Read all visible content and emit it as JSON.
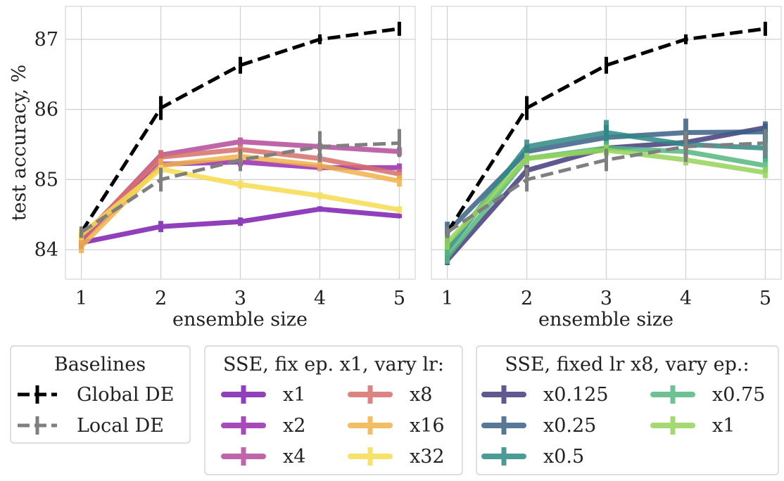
{
  "chart_data": [
    {
      "type": "line",
      "panel": "left",
      "xlabel": "ensemble size",
      "ylabel": "test accuracy, %",
      "x": [
        1,
        2,
        3,
        4,
        5
      ],
      "xticks": [
        "1",
        "2",
        "3",
        "4",
        "5"
      ],
      "yticks": [
        "84",
        "85",
        "86",
        "87"
      ],
      "xlim": [
        0.8,
        5.2
      ],
      "ylim": [
        83.58,
        87.47
      ],
      "grid": true,
      "series": [
        {
          "name": "Global DE",
          "values": [
            84.25,
            86.02,
            86.63,
            87.0,
            87.15
          ],
          "err": [
            0.08,
            0.17,
            0.12,
            0.07,
            0.1
          ],
          "color": "#000000",
          "dashed": true,
          "alpha": 1.0
        },
        {
          "name": "Local DE",
          "values": [
            84.25,
            85.0,
            85.28,
            85.47,
            85.52
          ],
          "err": [
            0.08,
            0.17,
            0.16,
            0.22,
            0.2
          ],
          "color": "#7f7f7f",
          "dashed": true,
          "alpha": 1.0
        },
        {
          "name": "x1",
          "values": [
            84.1,
            84.33,
            84.4,
            84.58,
            84.48
          ],
          "err": [
            0.09,
            0.08,
            0.06,
            0.04,
            0.03
          ],
          "color": "#7e1fb0",
          "dashed": false,
          "alpha": 0.85
        },
        {
          "name": "x2",
          "values": [
            84.13,
            85.22,
            85.25,
            85.17,
            85.17
          ],
          "err": [
            0.07,
            0.06,
            0.06,
            0.05,
            0.06
          ],
          "color": "#9a2cae",
          "dashed": false,
          "alpha": 0.85
        },
        {
          "name": "x4",
          "values": [
            84.15,
            85.35,
            85.54,
            85.47,
            85.4
          ],
          "err": [
            0.08,
            0.07,
            0.06,
            0.05,
            0.06
          ],
          "color": "#b44c9c",
          "dashed": false,
          "alpha": 0.85
        },
        {
          "name": "x8",
          "values": [
            84.17,
            85.32,
            85.43,
            85.3,
            85.08
          ],
          "err": [
            0.08,
            0.1,
            0.07,
            0.07,
            0.07
          ],
          "color": "#d76f6a",
          "dashed": false,
          "alpha": 0.85
        },
        {
          "name": "x16",
          "values": [
            84.05,
            85.2,
            85.33,
            85.2,
            84.98
          ],
          "err": [
            0.1,
            0.1,
            0.08,
            0.08,
            0.08
          ],
          "color": "#f0b24a",
          "dashed": false,
          "alpha": 0.85
        },
        {
          "name": "x32",
          "values": [
            84.22,
            85.15,
            84.93,
            84.77,
            84.57
          ],
          "err": [
            0.08,
            0.06,
            0.06,
            0.05,
            0.05
          ],
          "color": "#f6dc52",
          "dashed": false,
          "alpha": 0.85
        }
      ]
    },
    {
      "type": "line",
      "panel": "right",
      "xlabel": "ensemble size",
      "ylabel": "",
      "x": [
        1,
        2,
        3,
        4,
        5
      ],
      "xticks": [
        "1",
        "2",
        "3",
        "4",
        "5"
      ],
      "yticks": [],
      "xlim": [
        0.8,
        5.2
      ],
      "ylim": [
        83.58,
        87.47
      ],
      "grid": true,
      "series": [
        {
          "name": "Global DE",
          "values": [
            84.25,
            86.02,
            86.63,
            87.0,
            87.15
          ],
          "err": [
            0.08,
            0.17,
            0.12,
            0.07,
            0.1
          ],
          "color": "#000000",
          "dashed": true,
          "alpha": 1.0
        },
        {
          "name": "Local DE",
          "values": [
            84.25,
            85.0,
            85.28,
            85.47,
            85.52
          ],
          "err": [
            0.08,
            0.17,
            0.16,
            0.22,
            0.2
          ],
          "color": "#7f7f7f",
          "dashed": true,
          "alpha": 1.0
        },
        {
          "name": "x0.125",
          "values": [
            83.85,
            85.13,
            85.45,
            85.53,
            85.74
          ],
          "err": [
            0.07,
            0.08,
            0.08,
            0.07,
            0.06
          ],
          "color": "#473b7d",
          "dashed": false,
          "alpha": 0.85
        },
        {
          "name": "x0.25",
          "values": [
            84.25,
            85.4,
            85.6,
            85.67,
            85.68
          ],
          "err": [
            0.15,
            0.1,
            0.18,
            0.2,
            0.15
          ],
          "color": "#3b6186",
          "dashed": false,
          "alpha": 0.85
        },
        {
          "name": "x0.5",
          "values": [
            84.0,
            85.47,
            85.67,
            85.5,
            85.45
          ],
          "err": [
            0.12,
            0.1,
            0.18,
            0.15,
            0.2
          ],
          "color": "#2e8a86",
          "dashed": false,
          "alpha": 0.85
        },
        {
          "name": "x0.75",
          "values": [
            83.9,
            85.3,
            85.45,
            85.4,
            85.2
          ],
          "err": [
            0.1,
            0.08,
            0.1,
            0.1,
            0.1
          ],
          "color": "#55b880",
          "dashed": false,
          "alpha": 0.85
        },
        {
          "name": "x1",
          "values": [
            84.1,
            85.3,
            85.42,
            85.28,
            85.1
          ],
          "err": [
            0.1,
            0.08,
            0.08,
            0.08,
            0.08
          ],
          "color": "#96d45a",
          "dashed": false,
          "alpha": 0.85
        }
      ]
    }
  ],
  "legends": {
    "baselines": {
      "title": "Baselines",
      "items": [
        {
          "label": "Global DE",
          "color": "#000000",
          "dashed": true
        },
        {
          "label": "Local DE",
          "color": "#7f7f7f",
          "dashed": true
        }
      ]
    },
    "lr": {
      "title": "SSE, fix ep. x1, vary lr:",
      "items": [
        {
          "label": "x1",
          "color": "#7e1fb0"
        },
        {
          "label": "x2",
          "color": "#9a2cae"
        },
        {
          "label": "x4",
          "color": "#b44c9c"
        },
        {
          "label": "x8",
          "color": "#d76f6a"
        },
        {
          "label": "x16",
          "color": "#f0b24a"
        },
        {
          "label": "x32",
          "color": "#f6dc52"
        }
      ]
    },
    "ep": {
      "title": "SSE, fixed lr x8, vary ep.:",
      "items": [
        {
          "label": "x0.125",
          "color": "#473b7d"
        },
        {
          "label": "x0.25",
          "color": "#3b6186"
        },
        {
          "label": "x0.5",
          "color": "#2e8a86"
        },
        {
          "label": "x0.75",
          "color": "#55b880"
        },
        {
          "label": "x1",
          "color": "#96d45a"
        }
      ]
    }
  }
}
